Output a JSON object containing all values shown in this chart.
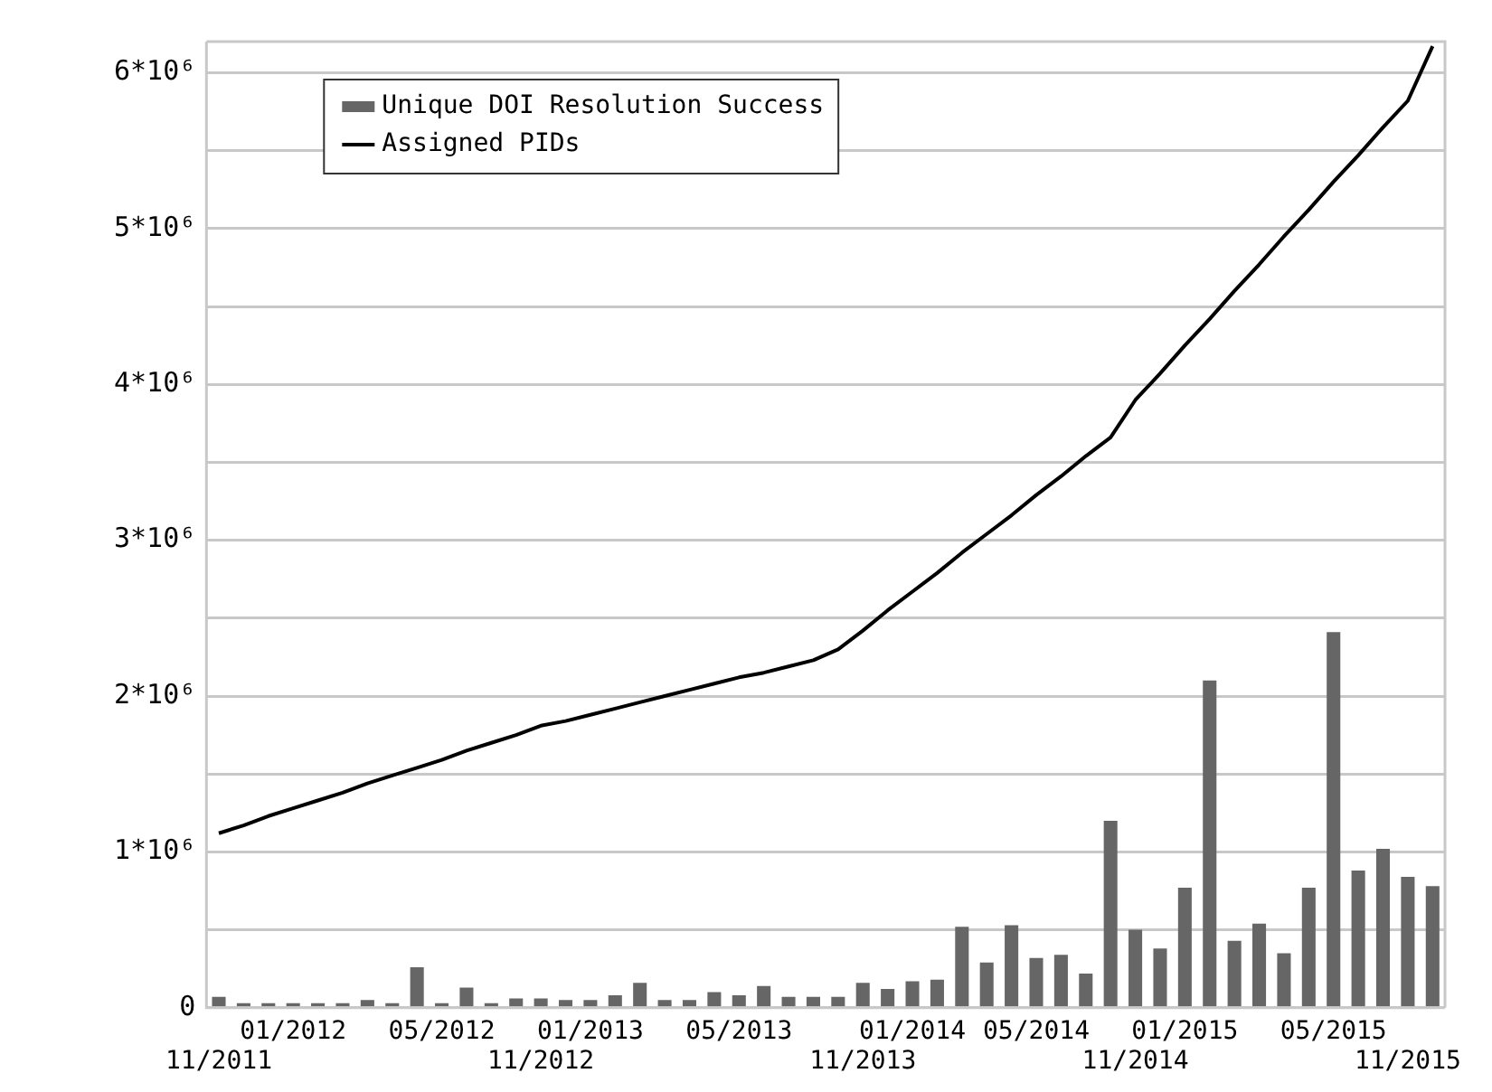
{
  "chart_data": {
    "type": "bar",
    "categories": [
      "11/2011",
      null,
      null,
      "01/2012",
      null,
      null,
      null,
      null,
      null,
      "05/2012",
      null,
      null,
      null,
      "11/2012",
      null,
      "01/2013",
      null,
      null,
      null,
      null,
      null,
      "05/2013",
      null,
      null,
      null,
      null,
      "11/2013",
      null,
      "01/2014",
      null,
      null,
      null,
      null,
      "05/2014",
      null,
      null,
      null,
      "11/2014",
      null,
      "01/2015",
      null,
      null,
      null,
      null,
      null,
      "05/2015",
      null,
      null,
      "11/2015",
      null
    ],
    "series": [
      {
        "name": "Unique DOI Resolution Success",
        "color": "#666666",
        "values": [
          70000,
          30000,
          30000,
          30000,
          30000,
          30000,
          50000,
          30000,
          260000,
          30000,
          130000,
          30000,
          60000,
          60000,
          50000,
          50000,
          80000,
          160000,
          50000,
          50000,
          100000,
          80000,
          140000,
          70000,
          70000,
          70000,
          160000,
          120000,
          170000,
          180000,
          520000,
          290000,
          530000,
          320000,
          340000,
          220000,
          1200000,
          500000,
          380000,
          770000,
          2100000,
          430000,
          540000,
          350000,
          770000,
          2410000,
          880000,
          1020000,
          840000,
          780000
        ]
      },
      {
        "name": "Assigned PIDs",
        "type": "line",
        "color": "#000000",
        "values": [
          1120000,
          1170000,
          1230000,
          1280000,
          1330000,
          1380000,
          1440000,
          1490000,
          1540000,
          1590000,
          1650000,
          1700000,
          1750000,
          1810000,
          1840000,
          1880000,
          1920000,
          1960000,
          2000000,
          2040000,
          2080000,
          2120000,
          2150000,
          2190000,
          2230000,
          2300000,
          2420000,
          2550000,
          2670000,
          2790000,
          2920000,
          3040000,
          3160000,
          3290000,
          3410000,
          3540000,
          3660000,
          3900000,
          4070000,
          4250000,
          4420000,
          4600000,
          4770000,
          4950000,
          5120000,
          5300000,
          5470000,
          5650000,
          5820000,
          6170000
        ]
      }
    ],
    "ylim": [
      0,
      6200000
    ],
    "yticks": [
      0,
      {
        "value": 500000,
        "label": null
      },
      {
        "value": 1000000,
        "label": "1*10⁶"
      },
      {
        "value": 1500000,
        "label": null
      },
      {
        "value": 2000000,
        "label": "2*10⁶"
      },
      {
        "value": 2500000,
        "label": null
      },
      {
        "value": 3000000,
        "label": "3*10⁶"
      },
      {
        "value": 3500000,
        "label": null
      },
      {
        "value": 4000000,
        "label": "4*10⁶"
      },
      {
        "value": 4500000,
        "label": null
      },
      {
        "value": 5000000,
        "label": "5*10⁶"
      },
      {
        "value": 5500000,
        "label": null
      },
      {
        "value": 6000000,
        "label": "6*10⁶"
      }
    ],
    "grid": "y",
    "legend": "top left",
    "marker": "none"
  }
}
